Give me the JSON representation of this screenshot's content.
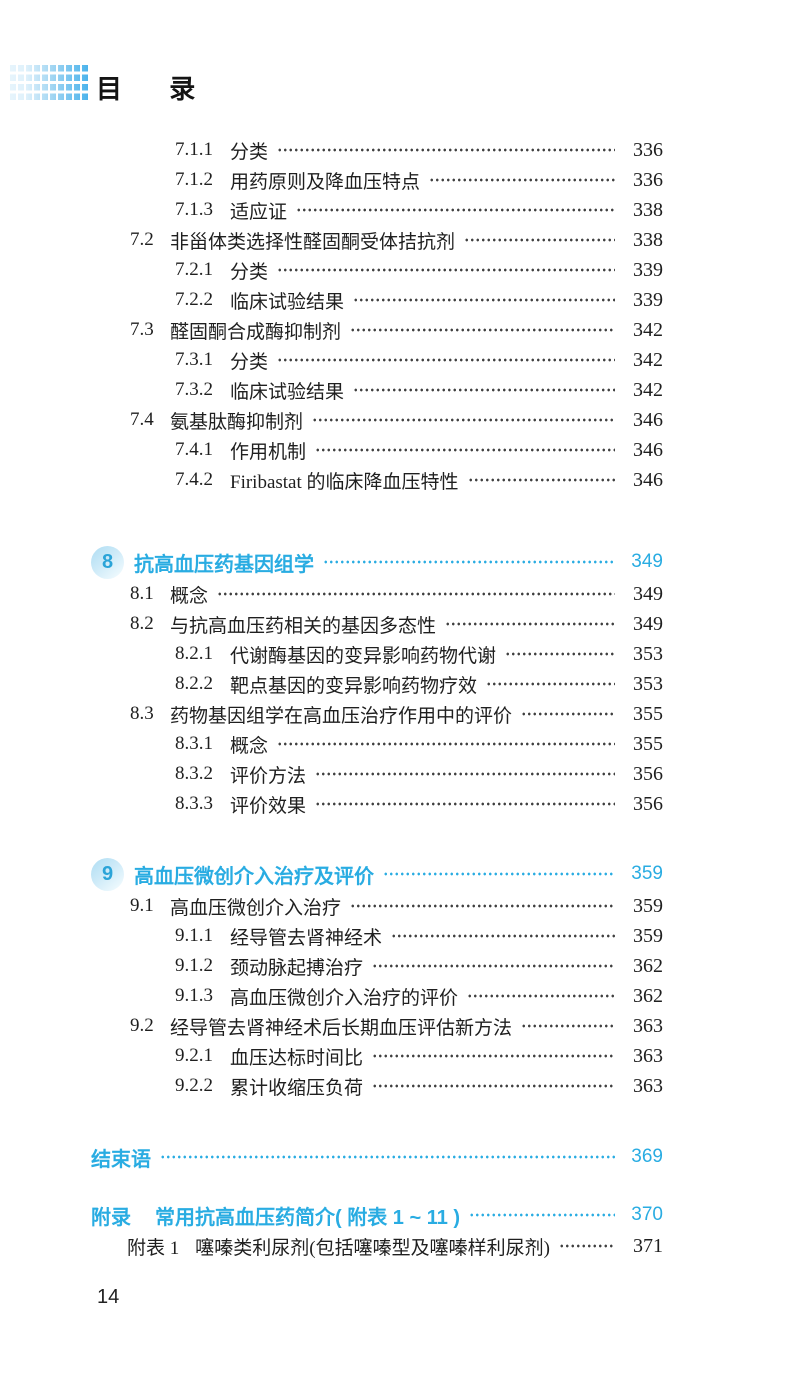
{
  "header": {
    "title": "目 录"
  },
  "footer": {
    "page_number": "14"
  },
  "colors": {
    "accent": "#29ACE2",
    "body_text": "#1F1F1F",
    "badge_fill_start": "#AEDDF3",
    "badge_fill_end": "#ECF8FD",
    "deco_square_light": "#E6F4FC",
    "deco_square_dark": "#47B2EC"
  },
  "toc": {
    "entries": [
      {
        "level": "l3",
        "num": "7.1.1",
        "title": "分类",
        "page": "336"
      },
      {
        "level": "l3",
        "num": "7.1.2",
        "title": "用药原则及降血压特点",
        "page": "336"
      },
      {
        "level": "l3",
        "num": "7.1.3",
        "title": "适应证",
        "page": "338"
      },
      {
        "level": "l2",
        "num": "7.2",
        "title": "非甾体类选择性醛固酮受体拮抗剂",
        "page": "338"
      },
      {
        "level": "l3",
        "num": "7.2.1",
        "title": "分类",
        "page": "339"
      },
      {
        "level": "l3",
        "num": "7.2.2",
        "title": "临床试验结果",
        "page": "339"
      },
      {
        "level": "l2",
        "num": "7.3",
        "title": "醛固酮合成酶抑制剂",
        "page": "342"
      },
      {
        "level": "l3",
        "num": "7.3.1",
        "title": "分类",
        "page": "342"
      },
      {
        "level": "l3",
        "num": "7.3.2",
        "title": "临床试验结果",
        "page": "342"
      },
      {
        "level": "l2",
        "num": "7.4",
        "title": "氨基肽酶抑制剂",
        "page": "346"
      },
      {
        "level": "l3",
        "num": "7.4.1",
        "title": "作用机制",
        "page": "346"
      },
      {
        "level": "l3",
        "num": "7.4.2",
        "title": "Firibastat 的临床降血压特性",
        "page": "346"
      },
      {
        "level": "chapter",
        "badge": "8",
        "title": "抗高血压药基因组学",
        "page": "349"
      },
      {
        "level": "l2",
        "num": "8.1",
        "title": "概念",
        "page": "349"
      },
      {
        "level": "l2",
        "num": "8.2",
        "title": "与抗高血压药相关的基因多态性",
        "page": "349"
      },
      {
        "level": "l3",
        "num": "8.2.1",
        "title": "代谢酶基因的变异影响药物代谢",
        "page": "353"
      },
      {
        "level": "l3",
        "num": "8.2.2",
        "title": "靶点基因的变异影响药物疗效",
        "page": "353"
      },
      {
        "level": "l2",
        "num": "8.3",
        "title": "药物基因组学在高血压治疗作用中的评价",
        "page": "355"
      },
      {
        "level": "l3",
        "num": "8.3.1",
        "title": "概念",
        "page": "355"
      },
      {
        "level": "l3",
        "num": "8.3.2",
        "title": "评价方法",
        "page": "356"
      },
      {
        "level": "l3",
        "num": "8.3.3",
        "title": "评价效果",
        "page": "356"
      },
      {
        "level": "chapter",
        "badge": "9",
        "title": "高血压微创介入治疗及评价",
        "page": "359"
      },
      {
        "level": "l2",
        "num": "9.1",
        "title": "高血压微创介入治疗",
        "page": "359"
      },
      {
        "level": "l3",
        "num": "9.1.1",
        "title": "经导管去肾神经术",
        "page": "359"
      },
      {
        "level": "l3",
        "num": "9.1.2",
        "title": "颈动脉起搏治疗",
        "page": "362"
      },
      {
        "level": "l3",
        "num": "9.1.3",
        "title": "高血压微创介入治疗的评价",
        "page": "362"
      },
      {
        "level": "l2",
        "num": "9.2",
        "title": "经导管去肾神经术后长期血压评估新方法",
        "page": "363"
      },
      {
        "level": "l3",
        "num": "9.2.1",
        "title": "血压达标时间比",
        "page": "363"
      },
      {
        "level": "l3",
        "num": "9.2.2",
        "title": "累计收缩压负荷",
        "page": "363"
      },
      {
        "level": "back",
        "title": "结束语",
        "page": "369"
      },
      {
        "level": "back",
        "num": "附录",
        "title": "常用抗高血压药简介( 附表 1 ~ 11 )",
        "page": "370"
      },
      {
        "level": "app",
        "num": "附表 1",
        "title": "噻嗪类利尿剂(包括噻嗪型及噻嗪样利尿剂)",
        "page": "371"
      }
    ]
  }
}
